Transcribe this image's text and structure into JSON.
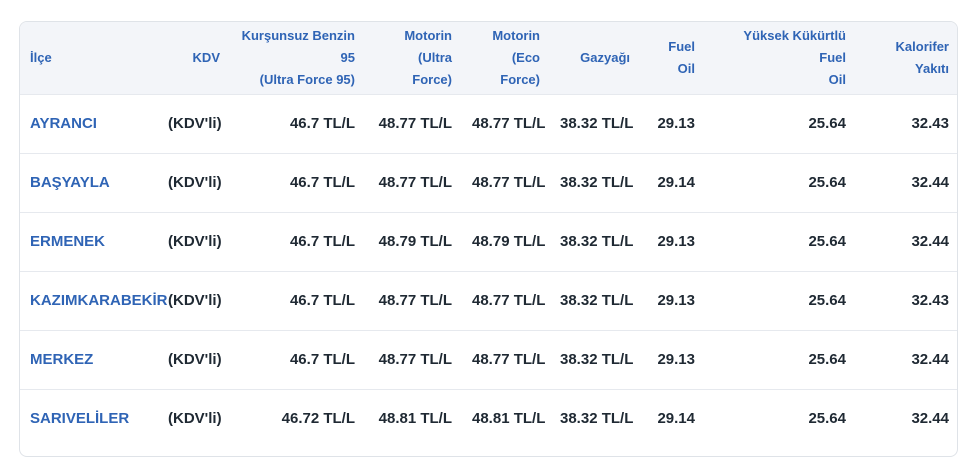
{
  "table": {
    "headers": {
      "district": "İlçe",
      "kdv": "KDV",
      "benzin_line1": "Kurşunsuz Benzin",
      "benzin_line2": "95",
      "benzin_line3": "(Ultra Force 95)",
      "motorin_ultra_line1": "Motorin",
      "motorin_ultra_line2": "(Ultra",
      "motorin_ultra_line3": "Force)",
      "motorin_eco_line1": "Motorin",
      "motorin_eco_line2": "(Eco Force)",
      "gazyagi": "Gazyağı",
      "fuel_oil_line1": "Fuel",
      "fuel_oil_line2": "Oil",
      "yuksek_line1": "Yüksek Kükürtlü Fuel",
      "yuksek_line2": "Oil",
      "kalorifer_line1": "Kalorifer",
      "kalorifer_line2": "Yakıtı"
    },
    "rows": [
      {
        "district": "AYRANCI",
        "kdv": "(KDV'li)",
        "benzin": "46.7 TL/L",
        "motorin_ultra": "48.77 TL/L",
        "motorin_eco": "48.77 TL/L",
        "gazyagi": "38.32 TL/L",
        "fuel_oil": "29.13",
        "yuksek": "25.64",
        "kalorifer": "32.43"
      },
      {
        "district": "BAŞYAYLA",
        "kdv": "(KDV'li)",
        "benzin": "46.7 TL/L",
        "motorin_ultra": "48.77 TL/L",
        "motorin_eco": "48.77 TL/L",
        "gazyagi": "38.32 TL/L",
        "fuel_oil": "29.14",
        "yuksek": "25.64",
        "kalorifer": "32.44"
      },
      {
        "district": "ERMENEK",
        "kdv": "(KDV'li)",
        "benzin": "46.7 TL/L",
        "motorin_ultra": "48.79 TL/L",
        "motorin_eco": "48.79 TL/L",
        "gazyagi": "38.32 TL/L",
        "fuel_oil": "29.13",
        "yuksek": "25.64",
        "kalorifer": "32.44"
      },
      {
        "district": "KAZIMKARABEKİR",
        "kdv": "(KDV'li)",
        "benzin": "46.7 TL/L",
        "motorin_ultra": "48.77 TL/L",
        "motorin_eco": "48.77 TL/L",
        "gazyagi": "38.32 TL/L",
        "fuel_oil": "29.13",
        "yuksek": "25.64",
        "kalorifer": "32.43"
      },
      {
        "district": "MERKEZ",
        "kdv": "(KDV'li)",
        "benzin": "46.7 TL/L",
        "motorin_ultra": "48.77 TL/L",
        "motorin_eco": "48.77 TL/L",
        "gazyagi": "38.32 TL/L",
        "fuel_oil": "29.13",
        "yuksek": "25.64",
        "kalorifer": "32.44"
      },
      {
        "district": "SARIVELİLER",
        "kdv": "(KDV'li)",
        "benzin": "46.72 TL/L",
        "motorin_ultra": "48.81 TL/L",
        "motorin_eco": "48.81 TL/L",
        "gazyagi": "38.32 TL/L",
        "fuel_oil": "29.14",
        "yuksek": "25.64",
        "kalorifer": "32.44"
      }
    ]
  }
}
